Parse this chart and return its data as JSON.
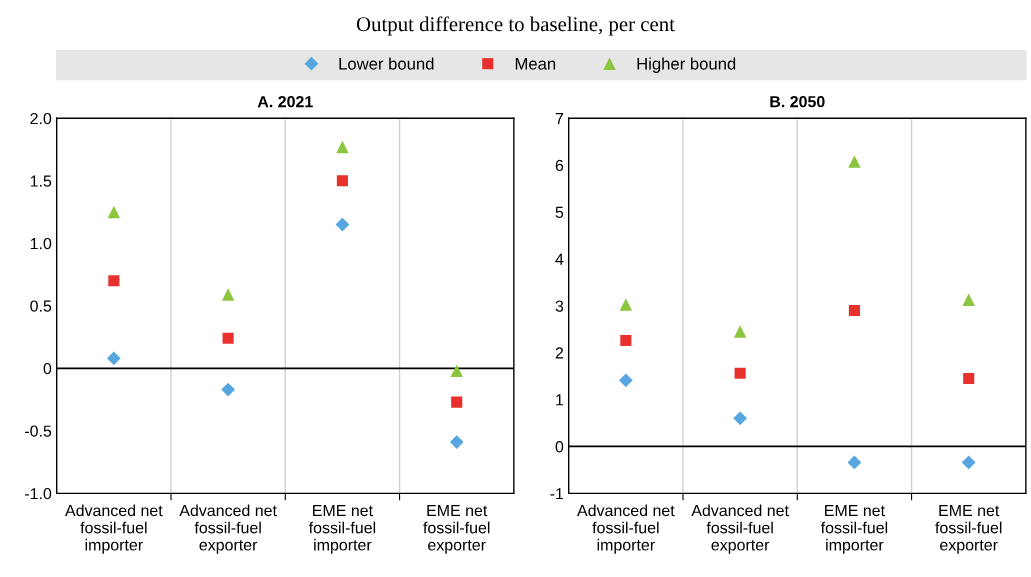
{
  "chart_data": [
    {
      "type": "scatter",
      "title": "A. 2021",
      "annotations": [
        "Output difference to baseline, per cent"
      ],
      "legend": "top",
      "grid": "x",
      "categories": [
        "Advanced net fossil-fuel importer",
        "Advanced net fossil-fuel exporter",
        "EME net fossil-fuel importer",
        "EME net fossil-fuel exporter"
      ],
      "ylim": [
        -1.0,
        2.0
      ],
      "yticks": [
        {
          "value": -1,
          "label": "-1.0"
        },
        -0.5,
        0,
        0.5,
        {
          "value": 1,
          "label": "1.0"
        },
        1.5,
        {
          "value": 2,
          "label": "2.0"
        }
      ],
      "ref_lines": [
        {
          "axis": "y",
          "value": 0,
          "color": "#000000"
        }
      ],
      "series": [
        {
          "name": "Lower bound",
          "color": "#58a6e0",
          "marker": "diamond",
          "values": [
            0.08,
            -0.17,
            1.15,
            -0.59
          ]
        },
        {
          "name": "Mean",
          "color": "#e8302d",
          "marker": "square",
          "values": [
            0.7,
            0.24,
            1.5,
            -0.27
          ]
        },
        {
          "name": "Higher bound",
          "color": "#8cc63e",
          "marker": "triangle",
          "values": [
            1.25,
            0.59,
            1.77,
            -0.02
          ]
        }
      ]
    },
    {
      "type": "scatter",
      "title": "B. 2050",
      "grid": "x",
      "categories": [
        "Advanced net fossil-fuel importer",
        "Advanced net fossil-fuel exporter",
        "EME net fossil-fuel importer",
        "EME net fossil-fuel exporter"
      ],
      "ylim": [
        -1,
        7
      ],
      "yticks": [
        -1,
        0,
        1,
        2,
        3,
        4,
        5,
        6,
        7
      ],
      "ref_lines": [
        {
          "axis": "y",
          "value": 0,
          "color": "#000000"
        }
      ],
      "series": [
        {
          "color": "#58a6e0",
          "marker": "diamond",
          "values": [
            1.41,
            0.6,
            -0.34,
            -0.34
          ]
        },
        {
          "color": "#e8302d",
          "marker": "square",
          "values": [
            2.26,
            1.56,
            2.9,
            1.45
          ]
        },
        {
          "color": "#8cc63e",
          "marker": "triangle",
          "values": [
            3.03,
            2.45,
            6.08,
            3.13
          ]
        }
      ]
    }
  ]
}
